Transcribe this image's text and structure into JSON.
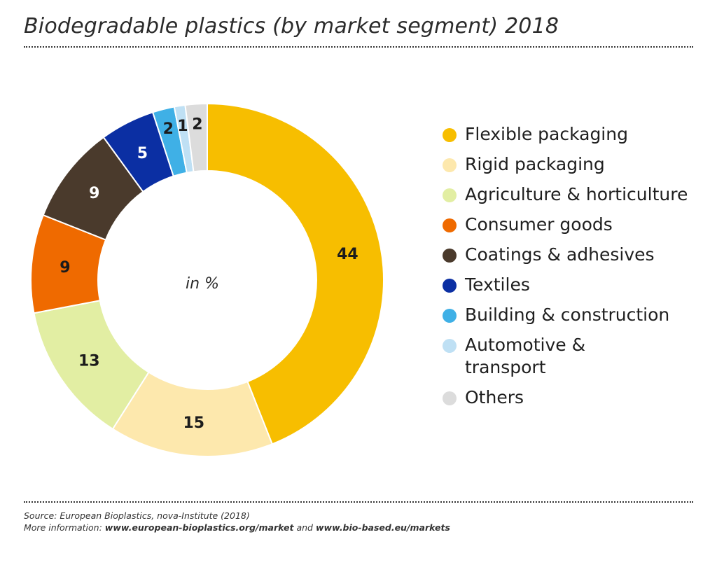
{
  "title": "Biodegradable plastics (by market segment) 2018",
  "center_label": "in %",
  "footer": {
    "source": "Source: European Bioplastics, nova-Institute (2018)",
    "more_prefix": "More information:",
    "link1": "www.european-bioplastics.org/market",
    "and_text": "and",
    "link2": "www.bio-based.eu/markets"
  },
  "chart_data": {
    "type": "pie",
    "title": "Biodegradable plastics (by market segment) 2018",
    "unit": "in %",
    "legend_position": "right",
    "categories": [
      "Flexible packaging",
      "Rigid packaging",
      "Agriculture & horticulture",
      "Consumer goods",
      "Coatings & adhesives",
      "Textiles",
      "Building & construction",
      "Automotive & transport",
      "Others"
    ],
    "values": [
      44,
      15,
      13,
      9,
      9,
      5,
      2,
      1,
      2
    ],
    "colors": [
      "#f7be00",
      "#fde8ad",
      "#e2eea3",
      "#ef6a00",
      "#4a3a2c",
      "#0b2fa3",
      "#3fb0e6",
      "#bfe0f4",
      "#dcdcdc"
    ],
    "legend_labels": [
      "Flexible packaging",
      "Rigid packaging",
      "Agriculture & horticulture",
      "Consumer goods",
      "Coatings & adhesives",
      "Textiles",
      "Building & construction",
      "Automotive &\ntransport",
      "Others"
    ],
    "label_colors": [
      "#1c1c1c",
      "#1c1c1c",
      "#1c1c1c",
      "#1c1c1c",
      "#ffffff",
      "#ffffff",
      "#1c1c1c",
      "#1c1c1c",
      "#1c1c1c"
    ]
  }
}
